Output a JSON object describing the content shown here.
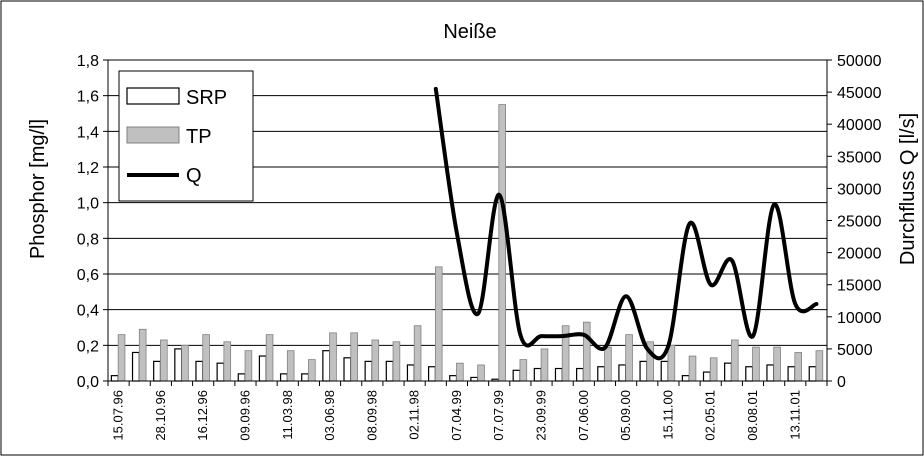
{
  "chart_data": {
    "type": "bar",
    "title": "Neiße",
    "ylabel": "Phosphor [mg/l]",
    "y2label": "Durchfluss Q [l/s]",
    "ylim": [
      0,
      1.8
    ],
    "y2lim": [
      0,
      50000
    ],
    "yticks": [
      "0,0",
      "0,2",
      "0,4",
      "0,6",
      "0,8",
      "1,0",
      "1,2",
      "1,4",
      "1,6",
      "1,8"
    ],
    "y2ticks": [
      "0",
      "5000",
      "10000",
      "15000",
      "20000",
      "25000",
      "30000",
      "35000",
      "40000",
      "45000",
      "50000"
    ],
    "grid": true,
    "legend_position": "top-left",
    "x_tick_labels": [
      "15.07.96",
      "28.10.96",
      "16.12.96",
      "09.09.96",
      "11.03.98",
      "03.06.98",
      "08.09.98",
      "02.11.98",
      "07.04.99",
      "07.07.99",
      "23.09.99",
      "07.06.00",
      "05.09.00",
      "15.11.00",
      "02.05.01",
      "08.08.01",
      "13.11.01"
    ],
    "n_groups": 34,
    "series": [
      {
        "name": "SRP",
        "kind": "bar",
        "color": "#ffffff",
        "values": [
          0.03,
          0.16,
          0.11,
          0.18,
          0.11,
          0.1,
          0.04,
          0.14,
          0.04,
          0.04,
          0.17,
          0.13,
          0.11,
          0.11,
          0.09,
          0.08,
          0.03,
          0.02,
          0.01,
          0.06,
          0.07,
          0.07,
          0.07,
          0.08,
          0.09,
          0.11,
          0.11,
          0.03,
          0.05,
          0.1,
          0.08,
          0.09,
          0.08,
          0.08
        ]
      },
      {
        "name": "TP",
        "kind": "bar",
        "color": "#c0c0c0",
        "values": [
          0.26,
          0.29,
          0.23,
          0.2,
          0.26,
          0.22,
          0.17,
          0.26,
          0.17,
          0.12,
          0.27,
          0.27,
          0.23,
          0.22,
          0.31,
          0.64,
          0.1,
          0.09,
          1.55,
          0.12,
          0.18,
          0.31,
          0.33,
          0.19,
          0.26,
          0.22,
          0.2,
          0.14,
          0.13,
          0.23,
          0.19,
          0.19,
          0.16,
          0.17
        ]
      },
      {
        "name": "Q",
        "kind": "line",
        "axis": "right",
        "color": "#000000",
        "x_group": [
          15,
          16,
          17,
          18,
          19,
          20,
          21,
          22,
          23,
          24,
          25,
          26,
          27,
          28,
          29,
          30,
          31,
          32,
          33
        ],
        "values": [
          45500,
          23000,
          10500,
          29000,
          7200,
          7000,
          7000,
          7200,
          5200,
          13200,
          5000,
          5500,
          24500,
          15000,
          18800,
          7000,
          27500,
          12000,
          12000
        ]
      }
    ]
  }
}
